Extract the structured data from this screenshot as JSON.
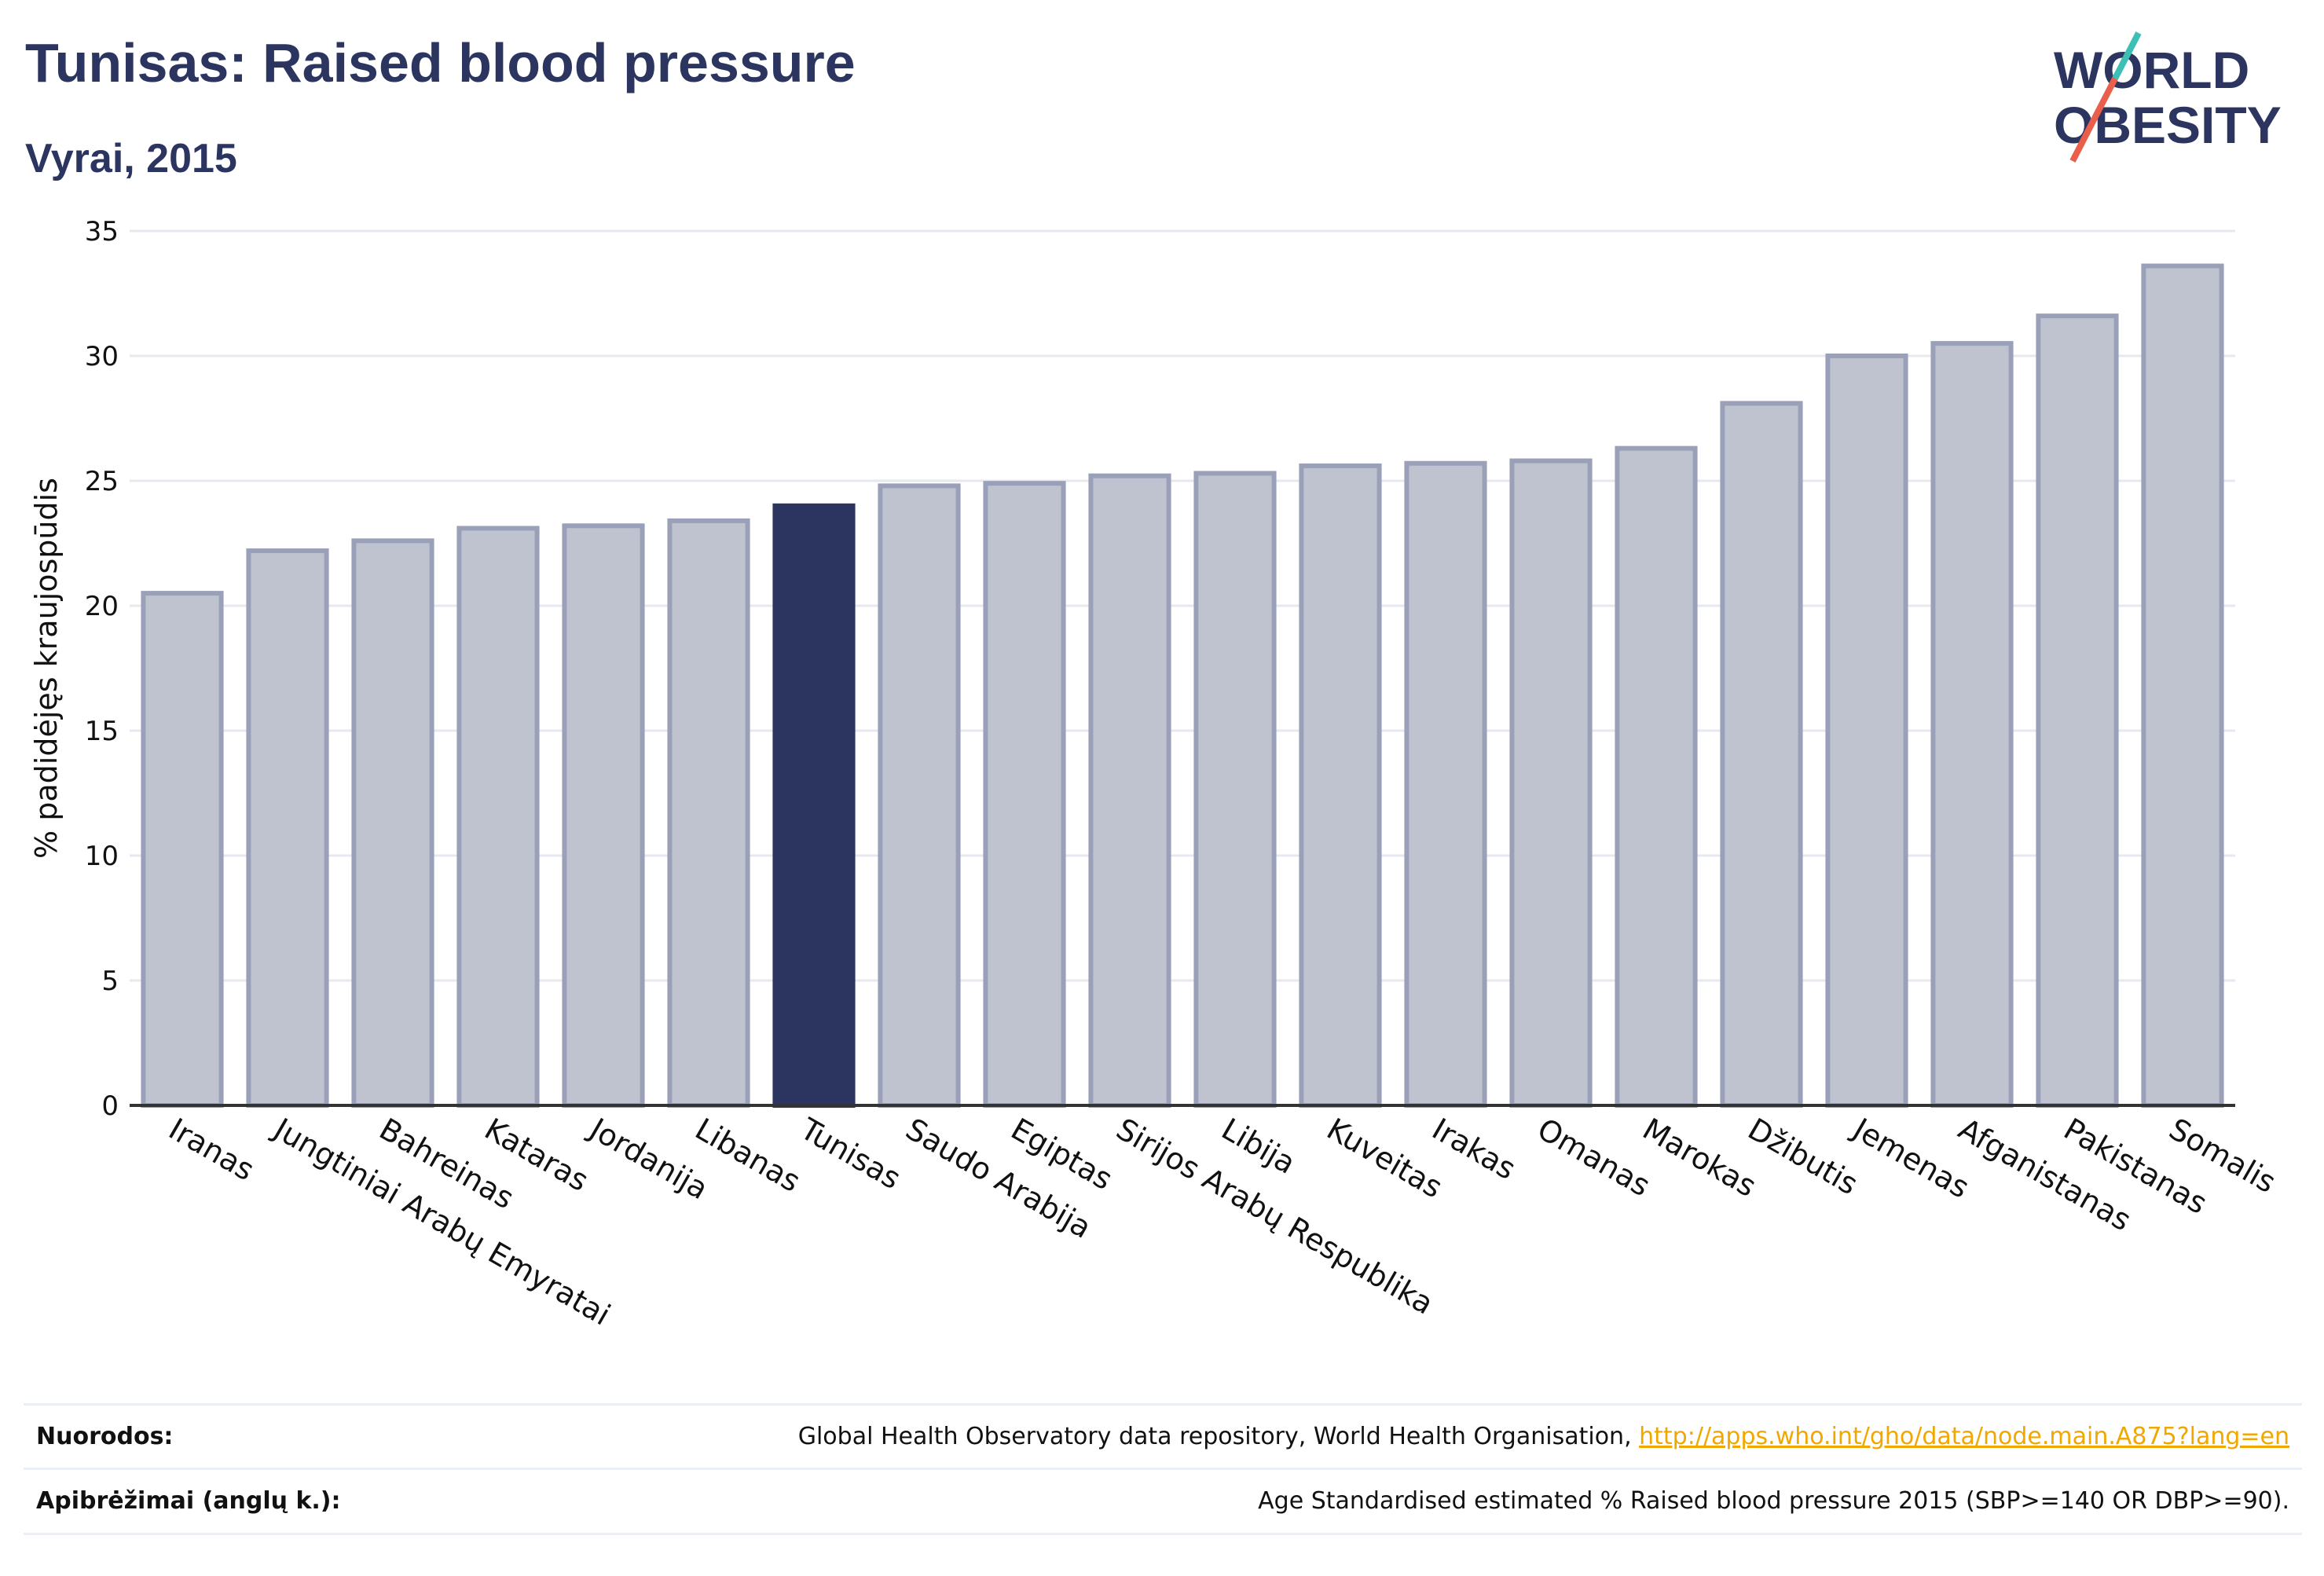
{
  "header": {
    "title": "Tunisas: Raised blood pressure",
    "subtitle": "Vyrai, 2015"
  },
  "logo": {
    "line1": "WORLD",
    "line2": "OBESITY"
  },
  "colors": {
    "title": "#2b3560",
    "bar": "#bfc3d0",
    "bar_stroke": "#9aa0b8",
    "highlight": "#2b3560",
    "grid": "#e6e8ef",
    "axis": "#333333",
    "link": "#f0a800",
    "logo_teal": "#3cbfb4",
    "logo_red": "#e8604c"
  },
  "chart_data": {
    "type": "bar",
    "ylabel": "% padidėjęs kraujospūdis",
    "ylim": [
      0,
      35
    ],
    "yticks": [
      0,
      5,
      10,
      15,
      20,
      25,
      30,
      35
    ],
    "categories": [
      "Iranas",
      "Jungtiniai Arabų Emyratai",
      "Bahreinas",
      "Kataras",
      "Jordanija",
      "Libanas",
      "Tunisas",
      "Saudo Arabija",
      "Egiptas",
      "Sirijos Arabų Respublika",
      "Libija",
      "Kuveitas",
      "Irakas",
      "Omanas",
      "Marokas",
      "Džibutis",
      "Jemenas",
      "Afganistanas",
      "Pakistanas",
      "Somalis"
    ],
    "values": [
      20.5,
      22.2,
      22.6,
      23.1,
      23.2,
      23.4,
      24.0,
      24.8,
      24.9,
      25.2,
      25.3,
      25.6,
      25.7,
      25.8,
      26.3,
      28.1,
      30.0,
      30.5,
      31.6,
      33.6
    ],
    "highlight": "Tunisas",
    "grid": true
  },
  "footer": {
    "refs_label": "Nuorodos:",
    "refs_text": "Global Health Observatory data repository, World Health Organisation, ",
    "refs_link": "http://apps.who.int/gho/data/node.main.A875?lang=en",
    "defs_label": "Apibrėžimai (anglų k.):",
    "defs_text": "Age Standardised estimated % Raised blood pressure 2015 (SBP>=140 OR DBP>=90)."
  }
}
